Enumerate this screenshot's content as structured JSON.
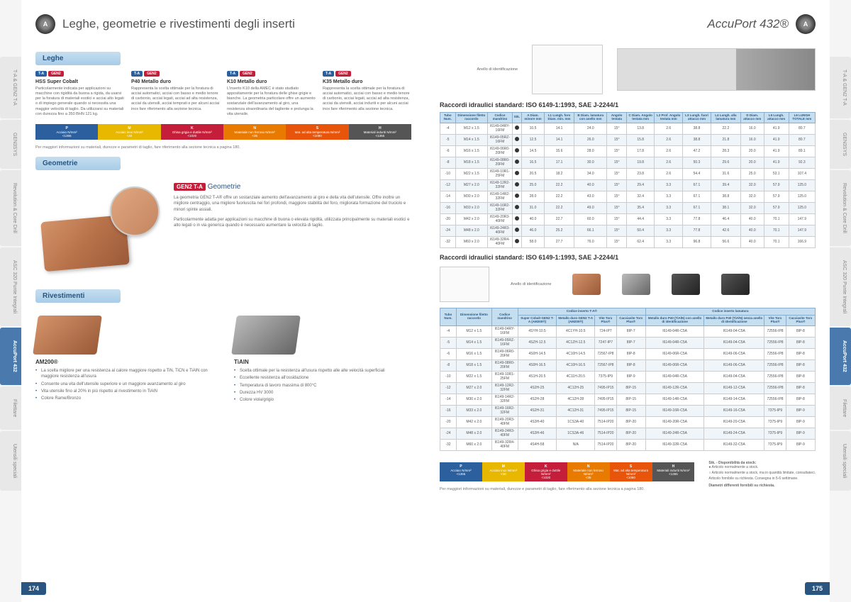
{
  "tabs": [
    "T-A & GEN2 T-A",
    "GEN3SYS",
    "Revolution & Core Drill",
    "ASC 320 Punte Integrali",
    "AccuPort 432",
    "Filettare",
    "Utensili speciali"
  ],
  "active_tab_index": 4,
  "left": {
    "title": "Leghe, geometrie e rivestimenti degli inserti",
    "sections": {
      "leghe": {
        "header": "Leghe",
        "items": [
          {
            "title": "HSS Super Cobalt",
            "desc": "Particolarmente indicata per applicazioni su macchine con rigidità da buona a rigida, da usarsi per la foratura di materiali esotici e acciai alto legati o di impiego generale quando si necessita una maggior velocità di taglio. Da utilizzarsi su materiali con durezza fino a 350 BHN 121 kg."
          },
          {
            "title": "P40 Metallo duro",
            "desc": "Rappresenta la scelta ottimale per la foratura di acciai automatici, acciai con basso e medio tenore di carbonio, acciai legati, acciai ad alta resistenza, acciai da utensili, acciai temprati e per alcuni acciai inox fare riferimento alla sezione tecnica."
          },
          {
            "title": "K10 Metallo duro",
            "desc": "L'inserto K10 della AMEC è stato studiato appositamente per la foratura delle ghise grigie e bianche. La geometria particolare offre un aumento sostanziale dell'avanzamento al giro, una resistenza straordinaria del tagliente e prolunga la vita utensile."
          },
          {
            "title": "K35 Metallo duro",
            "desc": "Rappresenta la scelta ottimale per la foratura di acciai automatici, acciai con basso e medio tenore di carbonio, acciai legati, acciai ad alta resistenza, acciai da utensili, acciai induriti e per alcuni acciai inox fare riferimento alla sezione tecnica."
          }
        ],
        "color_bar": [
          {
            "label": "P",
            "sub": "Acciaio N/mm²",
            "range": "<1365",
            "bg": "#2c5f9e"
          },
          {
            "label": "M",
            "sub": "Acciaio inox N/mm²",
            "range": "<40",
            "bg": "#e8b800"
          },
          {
            "label": "K",
            "sub": "Ghisa grigia e duttile N/mm²",
            "range": "<1020",
            "bg": "#c41e3a"
          },
          {
            "label": "N",
            "sub": "Materiale non ferroso N/mm²",
            "range": "<35",
            "bg": "#e87a00"
          },
          {
            "label": "S",
            "sub": "Mat. ad alta temperatura N/mm²",
            "range": "<1080",
            "bg": "#e8550a"
          },
          {
            "label": "H",
            "sub": "Materiali induriti N/mm²",
            "range": "<1365",
            "bg": "#555555"
          }
        ],
        "footnote": "Per maggiori informazioni su materiali, durezze e parametri di taglio, fare riferimento alla sezione tecnica a pagina 180."
      },
      "geometrie": {
        "header": "Geometrie",
        "title_prefix": "GEN2 T-A",
        "title_suffix": "Geometrie",
        "p1": "La geometria GEN2 T-A® offre un sostanziale aumento dell'avanzamento al giro e della vita dell'utensile. Offre inoltre un migliore centraggio, una migliore fuoriuscita nei fori profondi, maggiore stabilità del foro, migliorata formazione del truciolo e minori spinte assiali.",
        "p2": "Particolarmente adatta per applicazioni su macchine di buona o elevata rigidità, utilizzata principalmente su materiali esotici e alto legati o in via generica quando è necessario aumentare la velocità di taglio."
      },
      "rivestimenti": {
        "header": "Rivestimenti",
        "items": [
          {
            "name": "AM200®",
            "bullets": [
              "La scelta migliore per una resistenza al calore maggiore rispetto a TiN, TiCN e TiAlN con maggiore resistenza all'usura",
              "Consente una vita dell'utensile superiore e un maggiore avanzamento al giro",
              "Vita utensile fino al 20% in più rispetto al rivestimento in TiAlN",
              "Colore Rame/Bronzo"
            ]
          },
          {
            "name": "TiAlN",
            "bullets": [
              "Scelta ottimale per la resistenza all'usura rispetto alle alte velocità superficiali",
              "Eccellente resistenza all'ossidazione",
              "Temperatura di lavoro massima di 800°C",
              "Durezza HV 3000",
              "Colore viola/grigio"
            ]
          }
        ]
      }
    },
    "page_num": "174"
  },
  "right": {
    "title": "AccuPort 432®",
    "anello": "Anello di identificazione",
    "table1_title": "Raccordi idraulici standard: ISO 6149-1:1993, SAE J-2244/1",
    "table1_headers": [
      "Tubo Num.",
      "Dimensione filetto raccordo",
      "Codice mandrino",
      "Stk.",
      "A Diam. minore mm",
      "L1 Lungh. foro Diam. min. mm",
      "B Diam. lamatura con anello mm",
      "Angolo testata",
      "C Diam. Angolo testata mm",
      "L2 Prof. Angolo testata mm",
      "L3 Lungh. fuori attacco mm",
      "L4 Lungh. alla lamatura mm",
      "D Diam. attacco mm",
      "L5 Lungh. attacco mm",
      "L6 LUNGH TOTALE mm"
    ],
    "table1_rows": [
      [
        "-4",
        "M12 x 1.5",
        "I6149-04RY-16FM",
        "●",
        "10.5",
        "14.1",
        "24.0",
        "15°",
        "13.8",
        "2.6",
        "38.8",
        "22.2",
        "16.0",
        "41.9",
        "80.7"
      ],
      [
        "-5",
        "M14 x 1.5",
        "I6149-05RZ-16FM",
        "●",
        "12.5",
        "14.1",
        "26.0",
        "15°",
        "15.8",
        "2.6",
        "38.8",
        "21.8",
        "16.0",
        "41.9",
        "80.7"
      ],
      [
        "-6",
        "M16 x 1.5",
        "I6149-06R0-20FM",
        "●",
        "14.5",
        "15.6",
        "28.0",
        "15°",
        "17.8",
        "2.6",
        "47.2",
        "28.3",
        "20.0",
        "41.9",
        "89.1"
      ],
      [
        "-8",
        "M18 x 1.5",
        "I6149-08R0-20FM",
        "●",
        "16.5",
        "17.1",
        "30.0",
        "15°",
        "19.8",
        "2.6",
        "50.3",
        "29.6",
        "20.0",
        "41.9",
        "92.3"
      ],
      [
        "-10",
        "M22 x 1.5",
        "I6149-10R1-25FM",
        "●",
        "20.5",
        "18.2",
        "34.0",
        "15°",
        "23.8",
        "2.6",
        "54.4",
        "31.6",
        "25.0",
        "53.1",
        "107.4"
      ],
      [
        "-12",
        "M27 x 2.0",
        "I6149-12R2-32FM",
        "●",
        "25.0",
        "22.2",
        "40.0",
        "15°",
        "29.4",
        "3.3",
        "67.1",
        "39.4",
        "32.0",
        "57.9",
        "125.0"
      ],
      [
        "-14",
        "M30 x 2.0",
        "I6149-14R2-32FM",
        "●",
        "28.0",
        "22.2",
        "43.0",
        "15°",
        "32.4",
        "3.3",
        "67.1",
        "38.8",
        "32.0",
        "57.9",
        "125.0"
      ],
      [
        "-16",
        "M33 x 2.0",
        "I6149-16R2-32FM",
        "●",
        "31.0",
        "22.2",
        "49.0",
        "15°",
        "35.4",
        "3.3",
        "67.1",
        "38.1",
        "32.0",
        "57.9",
        "125.0"
      ],
      [
        "-20",
        "M42 x 2.0",
        "I6149-20R3-40FM",
        "●",
        "40.0",
        "22.7",
        "60.0",
        "15°",
        "44.4",
        "3.3",
        "77.8",
        "46.4",
        "40.0",
        "70.1",
        "147.9"
      ],
      [
        "-24",
        "M48 x 2.0",
        "I6149-24R3-40FM",
        "●",
        "46.0",
        "25.2",
        "66.1",
        "15°",
        "50.4",
        "3.3",
        "77.8",
        "42.6",
        "40.0",
        "70.1",
        "147.9"
      ],
      [
        "-32",
        "M60 x 2.0",
        "I6149-32R4-40FM",
        "●",
        "58.0",
        "27.7",
        "76.0",
        "15°",
        "62.4",
        "3.3",
        "96.8",
        "56.6",
        "40.0",
        "70.1",
        "166.9"
      ]
    ],
    "table2_title": "Raccordi idraulici standard: ISO 6149-1:1993, SAE J-2244/1",
    "table2_group_headers": [
      "",
      "",
      "",
      "Codice inserto T-A®",
      "Codice inserto lamatura"
    ],
    "table2_headers": [
      "Tubo Num.",
      "Dimensione filetto raccordo",
      "Codice mandrino",
      "Super Cobalt GEN2 T-A (AM200®)",
      "Metallo duro GEN2 T-A (AM200®)",
      "Vite Torx Plus®",
      "Cacciavite Torx Plus®",
      "Metallo duro P40 (TiAlN) con anello di identificazione",
      "Metallo duro P40 (TiAlN) senza anello di identificazione",
      "Vite Torx Plus®",
      "Cacciavite Torx Plus®"
    ],
    "table2_rows": [
      [
        "-4",
        "M12 x 1.5",
        "I6149-04RY-16FM",
        "4SYH-10.5",
        "4C1YH-10.5",
        "724-IP7",
        "8IP-7",
        "I6149-04R-C5A",
        "I6149-04-C5A",
        "72556-IP8",
        "8IP-8"
      ],
      [
        "-5",
        "M14 x 1.5",
        "I6149-05RZ-16FM",
        "4SZH-12.5",
        "4C1ZH-12.5",
        "7247-IP7",
        "8IP-7",
        "I6149-04R-C5A",
        "I6149-04-C5A",
        "72556-IP8",
        "8IP-8"
      ],
      [
        "-6",
        "M16 x 1.5",
        "I6149-06R0-20FM",
        "4S0H-14.5",
        "4C10H-14.5",
        "72567-IP8",
        "8IP-8",
        "I6149-06R-C5A",
        "I6149-06-C5A",
        "72556-IP8",
        "8IP-8"
      ],
      [
        "-8",
        "M18 x 1.5",
        "I6149-08R0-20FM",
        "4S0H-16.5",
        "4C10H-16.5",
        "72567-IP8",
        "8IP-8",
        "I6149-06R-C5A",
        "I6149-06-C5A",
        "72556-IP8",
        "8IP-8"
      ],
      [
        "-10",
        "M22 x 1.5",
        "I6149-10R1-25FM",
        "4S1H-20.5",
        "4C11H-20.5",
        "7375-IP9",
        "8IP-9",
        "I6149-04R-C5A",
        "I6149-04-C5A",
        "72556-IP8",
        "8IP-8"
      ],
      [
        "-12",
        "M27 x 2.0",
        "I6149-12R2-32FM",
        "4S2H-25",
        "4C12H-25",
        "7495-IP15",
        "8IP-15",
        "I6149-12R-C5A",
        "I6149-12-C5A",
        "72556-IP8",
        "8IP-8"
      ],
      [
        "-14",
        "M30 x 2.0",
        "I6149-14R2-32FM",
        "4S2H-28",
        "4C12H-28",
        "7495-IP15",
        "8IP-15",
        "I6149-14R-C5A",
        "I6149-14-C5A",
        "72556-IP8",
        "8IP-8"
      ],
      [
        "-16",
        "M33 x 2.0",
        "I6149-16R2-32FM",
        "4S2H-31",
        "4C12H-31",
        "7495-IP15",
        "8IP-15",
        "I6149-16R-C5A",
        "I6149-16-C5A",
        "7375-IP9",
        "8IP-9"
      ],
      [
        "-20",
        "M42 x 2.0",
        "I6149-20R3-40FM",
        "4S3H-40",
        "1CS3A-40",
        "7514-IP20",
        "8IP-20",
        "I6149-20R-C5A",
        "I6149-20-C5A",
        "7375-IP9",
        "8IP-9"
      ],
      [
        "-24",
        "M48 x 2.0",
        "I6149-24R3-40FM",
        "4S3H-46",
        "1CS3A-46",
        "7514-IP20",
        "8IP-20",
        "I6149-24R-C5A",
        "I6149-24-C5A",
        "7375-IP9",
        "8IP-9"
      ],
      [
        "-32",
        "M60 x 2.0",
        "I6149-32R4-40FM",
        "4S4H-58",
        "N/A",
        "7514-IP20",
        "8IP-20",
        "I6149-32R-C5A",
        "I6149-32-C5A",
        "7375-IP9",
        "8IP-9"
      ]
    ],
    "legend": {
      "title": "Stk. - Disponibilità da stock:",
      "items": [
        "● Articolo normalmente a stock.",
        "○ Articolo normalmente a stock, ma in quantità limitate, consultateci.",
        "Articolo fornibile su richiesta. Consegna in 5-6 settimane."
      ],
      "diam": "Diametri differenti fornibili su richiesta."
    },
    "footnote": "Per maggiori informazioni su materiali, durezze e parametri di taglio, fare riferimento alla sezione tecnica a pagina 180.",
    "page_num": "175"
  }
}
